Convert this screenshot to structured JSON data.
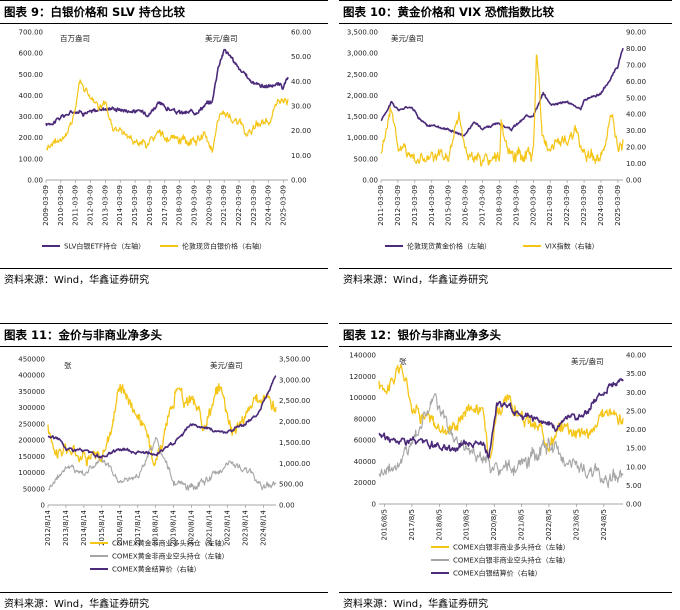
{
  "panels": {
    "p9": {
      "title": "图表 9：白银价格和 SLV 持仓比较",
      "source": "资料来源：Wind，华鑫证券研究",
      "unit_left": "百万盎司",
      "unit_right": "美元/盎司",
      "yl_ticks": [
        "0.00",
        "100.00",
        "200.00",
        "300.00",
        "400.00",
        "500.00",
        "600.00",
        "700.00"
      ],
      "yr_ticks": [
        "0.00",
        "10.00",
        "20.00",
        "30.00",
        "40.00",
        "50.00",
        "60.00"
      ],
      "x_ticks": [
        "2009-03-09",
        "2010-03-09",
        "2011-03-09",
        "2012-03-09",
        "2013-03-09",
        "2014-03-09",
        "2015-03-09",
        "2016-03-09",
        "2017-03-09",
        "2018-03-09",
        "2019-03-09",
        "2020-03-09",
        "2021-03-09",
        "2022-03-09",
        "2023-03-09",
        "2024-03-09",
        "2025-03-09"
      ],
      "legend": [
        "SLV白银ETF持仓（左轴）",
        "伦敦现货白银价格（右轴）"
      ],
      "colors": [
        "#4b2a7a",
        "#f5c518"
      ]
    },
    "p10": {
      "title": "图表 10：黄金价格和 VIX 恐慌指数比较",
      "source": "资料来源：Wind，华鑫证券研究",
      "unit_left": "美元/盎司",
      "yl_ticks": [
        "0.00",
        "500.00",
        "1,000.00",
        "1,500.00",
        "2,000.00",
        "2,500.00",
        "3,000.00",
        "3,500.00"
      ],
      "yr_ticks": [
        "0.00",
        "10.00",
        "20.00",
        "30.00",
        "40.00",
        "50.00",
        "60.00",
        "70.00",
        "80.00",
        "90.00"
      ],
      "x_ticks": [
        "2011-03-09",
        "2012-03-09",
        "2013-03-09",
        "2014-03-09",
        "2015-03-09",
        "2016-03-09",
        "2017-03-09",
        "2018-03-09",
        "2019-03-09",
        "2020-03-09",
        "2021-03-09",
        "2022-03-09",
        "2023-03-09",
        "2024-03-09",
        "2025-03-09"
      ],
      "legend": [
        "伦敦现货黄金价格（左轴）",
        "VIX指数（右轴）"
      ],
      "colors": [
        "#4b2a7a",
        "#f5c518"
      ]
    },
    "p11": {
      "title": "图表 11：金价与非商业净多头",
      "source": "资料来源：Wind，华鑫证券研究",
      "unit_left": "张",
      "unit_right": "美元/盎司",
      "yl_ticks": [
        "0",
        "50000",
        "100000",
        "150000",
        "200000",
        "250000",
        "300000",
        "350000",
        "400000",
        "450000"
      ],
      "yr_ticks": [
        "0.00",
        "500.00",
        "1,000.00",
        "1,500.00",
        "2,000.00",
        "2,500.00",
        "3,000.00",
        "3,500.00"
      ],
      "x_ticks": [
        "2012/8/14",
        "2013/8/14",
        "2014/8/14",
        "2015/8/14",
        "2016/8/14",
        "2017/8/14",
        "2018/8/14",
        "2019/8/14",
        "2020/8/14",
        "2021/8/14",
        "2022/8/14",
        "2023/8/14",
        "2024/8/14"
      ],
      "legend": [
        "COMEX黄金非商业多头持仓（左轴）",
        "COMEX黄金非商业空头持仓（左轴）",
        "COMEX黄金结算价（右轴）"
      ],
      "colors": [
        "#f5c518",
        "#a6a6a6",
        "#4b2a7a"
      ]
    },
    "p12": {
      "title": "图表 12：银价与非商业净多头",
      "source": "资料来源：Wind，华鑫证券研究",
      "unit_left": "张",
      "unit_right": "美元/盎司",
      "yl_ticks": [
        "0",
        "20000",
        "40000",
        "60000",
        "80000",
        "100000",
        "120000",
        "140000"
      ],
      "yr_ticks": [
        "0.00",
        "5.00",
        "10.00",
        "15.00",
        "20.00",
        "25.00",
        "30.00",
        "35.00",
        "40.00"
      ],
      "x_ticks": [
        "2016/8/5",
        "2017/8/5",
        "2018/8/5",
        "2019/8/5",
        "2020/8/5",
        "2021/8/5",
        "2022/8/5",
        "2023/8/5",
        "2024/8/5"
      ],
      "legend": [
        "COMEX白银非商业多头持仓（左轴）",
        "COMEX白银非商业空头持仓（左轴）",
        "COMEX白银结算价（右轴）"
      ],
      "colors": [
        "#f5c518",
        "#a6a6a6",
        "#4b2a7a"
      ]
    }
  },
  "chart_data": [
    {
      "type": "line",
      "title": "图表 9：白银价格和 SLV 持仓比较",
      "x": [
        2009,
        2010,
        2011,
        2012,
        2013,
        2014,
        2015,
        2016,
        2017,
        2018,
        2019,
        2020,
        2021,
        2022,
        2023,
        2024,
        2025
      ],
      "xlim": [
        2009,
        2025.3
      ],
      "ylim_left": [
        0,
        700
      ],
      "ylim_right": [
        0,
        60
      ],
      "series": [
        {
          "name": "SLV白银ETF持仓（左轴）",
          "axis": "left",
          "color": "#4b2a7a",
          "x": [
            2009,
            2010,
            2011,
            2011.5,
            2012,
            2013,
            2013.5,
            2014,
            2015,
            2016,
            2016.5,
            2017,
            2018,
            2019,
            2019.8,
            2020.2,
            2020.6,
            2021,
            2021.5,
            2022,
            2022.5,
            2023,
            2023.5,
            2024,
            2024.5,
            2025,
            2025.3
          ],
          "values": [
            260,
            295,
            330,
            320,
            320,
            340,
            340,
            335,
            325,
            320,
            360,
            345,
            315,
            320,
            360,
            370,
            540,
            620,
            580,
            520,
            490,
            460,
            450,
            440,
            455,
            440,
            480
          ]
        },
        {
          "name": "伦敦现货白银价格（右轴）",
          "axis": "right",
          "color": "#f5c518",
          "x": [
            2009,
            2009.6,
            2010,
            2010.5,
            2011,
            2011.3,
            2011.6,
            2012,
            2012.5,
            2013,
            2013.5,
            2014,
            2015,
            2015.9,
            2016.5,
            2017,
            2018,
            2019,
            2019.6,
            2020.2,
            2020.6,
            2021,
            2021.5,
            2022,
            2022.5,
            2023,
            2023.5,
            2024,
            2024.4,
            2024.8,
            2025,
            2025.3
          ],
          "values": [
            13,
            16,
            17,
            19,
            30,
            42,
            37,
            34,
            29,
            30,
            21,
            20,
            16,
            14,
            19,
            17,
            16,
            15,
            18,
            13,
            25,
            27,
            25,
            23,
            19,
            22,
            24,
            23,
            29,
            31,
            32,
            33
          ]
        }
      ]
    },
    {
      "type": "line",
      "title": "图表 10：黄金价格和 VIX 恐慌指数比较",
      "x": [
        2011,
        2012,
        2013,
        2014,
        2015,
        2016,
        2017,
        2018,
        2019,
        2020,
        2021,
        2022,
        2023,
        2024,
        2025
      ],
      "xlim": [
        2011,
        2025.3
      ],
      "ylim_left": [
        0,
        3500
      ],
      "ylim_right": [
        0,
        90
      ],
      "series": [
        {
          "name": "伦敦现货黄金价格（左轴）",
          "axis": "left",
          "color": "#4b2a7a",
          "x": [
            2011,
            2011.6,
            2012,
            2012.8,
            2013.3,
            2013.8,
            2014,
            2015,
            2015.9,
            2016.5,
            2017,
            2018,
            2018.7,
            2019,
            2019.6,
            2020,
            2020.6,
            2021,
            2022,
            2022.8,
            2023,
            2024,
            2024.5,
            2025,
            2025.3
          ],
          "values": [
            1400,
            1850,
            1650,
            1750,
            1450,
            1250,
            1300,
            1200,
            1060,
            1350,
            1250,
            1320,
            1190,
            1300,
            1500,
            1550,
            2050,
            1800,
            1850,
            1650,
            1900,
            2050,
            2350,
            2700,
            3100
          ]
        },
        {
          "name": "VIX指数（右轴）",
          "axis": "right",
          "color": "#f5c518",
          "x": [
            2011,
            2011.6,
            2011.9,
            2012,
            2012.5,
            2013,
            2014,
            2015,
            2015.6,
            2016,
            2017,
            2018,
            2018.1,
            2018.5,
            2019,
            2020,
            2020.2,
            2020.5,
            2021,
            2022,
            2022.5,
            2023,
            2024,
            2024.6,
            2025,
            2025.3
          ],
          "values": [
            17,
            45,
            30,
            20,
            18,
            14,
            13,
            14,
            40,
            18,
            11,
            12,
            37,
            15,
            14,
            15,
            80,
            28,
            20,
            25,
            28,
            18,
            13,
            38,
            18,
            25
          ]
        }
      ]
    },
    {
      "type": "line",
      "title": "图表 11：金价与非商业净多头",
      "x": [
        2012.6,
        2013.6,
        2014.6,
        2015.6,
        2016.6,
        2017.6,
        2018.6,
        2019.6,
        2020.6,
        2021.6,
        2022.6,
        2023.6,
        2024.6
      ],
      "xlim": [
        2012.6,
        2025.3
      ],
      "ylim_left": [
        0,
        450000
      ],
      "ylim_right": [
        0,
        3500
      ],
      "series": [
        {
          "name": "COMEX黄金非商业多头持仓（左轴）",
          "axis": "left",
          "color": "#f5c518",
          "x": [
            2012.6,
            2013.2,
            2013.6,
            2014.6,
            2015.6,
            2016.2,
            2016.6,
            2017.6,
            2018.6,
            2019.2,
            2019.8,
            2020.3,
            2020.6,
            2021.2,
            2021.8,
            2022.2,
            2022.9,
            2023.6,
            2024.2,
            2024.8,
            2025.3
          ],
          "values": [
            230000,
            160000,
            170000,
            160000,
            140000,
            260000,
            380000,
            280000,
            150000,
            230000,
            370000,
            300000,
            330000,
            250000,
            320000,
            370000,
            230000,
            270000,
            320000,
            340000,
            300000
          ]
        },
        {
          "name": "COMEX黄金非商业空头持仓（左轴）",
          "axis": "left",
          "color": "#a6a6a6",
          "x": [
            2012.6,
            2013.6,
            2014.6,
            2015.6,
            2016.6,
            2017.6,
            2018.6,
            2019.6,
            2020.6,
            2021.6,
            2022.6,
            2023.6,
            2024.6,
            2025.3
          ],
          "values": [
            50000,
            120000,
            100000,
            140000,
            70000,
            90000,
            200000,
            70000,
            50000,
            80000,
            130000,
            110000,
            60000,
            70000
          ]
        },
        {
          "name": "COMEX黄金结算价（右轴）",
          "axis": "right",
          "color": "#4b2a7a",
          "x": [
            2012.6,
            2013.2,
            2013.6,
            2014.6,
            2015.6,
            2016.5,
            2017.6,
            2018.6,
            2019.6,
            2020.6,
            2021.6,
            2022.6,
            2023.6,
            2024.2,
            2024.8,
            2025.3
          ],
          "values": [
            1650,
            1600,
            1350,
            1300,
            1120,
            1350,
            1280,
            1200,
            1500,
            1950,
            1800,
            1750,
            1950,
            2150,
            2650,
            3100
          ]
        }
      ]
    },
    {
      "type": "line",
      "title": "图表 12：银价与非商业净多头",
      "x": [
        2016.6,
        2017.6,
        2018.6,
        2019.6,
        2020.6,
        2021.6,
        2022.6,
        2023.6,
        2024.6
      ],
      "xlim": [
        2016.4,
        2025.3
      ],
      "ylim_left": [
        0,
        140000
      ],
      "ylim_right": [
        0,
        40
      ],
      "series": [
        {
          "name": "COMEX白银非商业多头持仓（左轴）",
          "axis": "left",
          "color": "#f5c518",
          "x": [
            2016.4,
            2016.9,
            2017.2,
            2017.6,
            2018.2,
            2018.6,
            2019.2,
            2019.7,
            2020.2,
            2020.4,
            2020.7,
            2021.2,
            2021.6,
            2022.2,
            2022.6,
            2023.2,
            2023.6,
            2024.2,
            2024.7,
            2025.3
          ],
          "values": [
            110000,
            115000,
            130000,
            95000,
            80000,
            70000,
            75000,
            95000,
            85000,
            45000,
            90000,
            95000,
            80000,
            70000,
            60000,
            75000,
            70000,
            65000,
            90000,
            80000
          ]
        },
        {
          "name": "COMEX白银非商业空头持仓（左轴）",
          "axis": "left",
          "color": "#a6a6a6",
          "x": [
            2016.4,
            2017.2,
            2017.6,
            2018.4,
            2018.9,
            2019.4,
            2020.2,
            2020.6,
            2021.6,
            2022.6,
            2023.1,
            2023.6,
            2024.6,
            2025.3
          ],
          "values": [
            30000,
            40000,
            60000,
            100000,
            70000,
            55000,
            45000,
            30000,
            35000,
            55000,
            45000,
            35000,
            25000,
            30000
          ]
        },
        {
          "name": "COMEX白银结算价（右轴）",
          "axis": "right",
          "color": "#4b2a7a",
          "x": [
            2016.4,
            2016.9,
            2017.6,
            2018.6,
            2019.2,
            2019.7,
            2020.2,
            2020.4,
            2020.7,
            2021.2,
            2021.6,
            2022.2,
            2022.8,
            2023.3,
            2023.8,
            2024.3,
            2024.8,
            2025.3
          ],
          "values": [
            19,
            17,
            17,
            15,
            15,
            17,
            16,
            12,
            27,
            26,
            24,
            23,
            20,
            24,
            23,
            28,
            32,
            33
          ]
        }
      ]
    }
  ]
}
